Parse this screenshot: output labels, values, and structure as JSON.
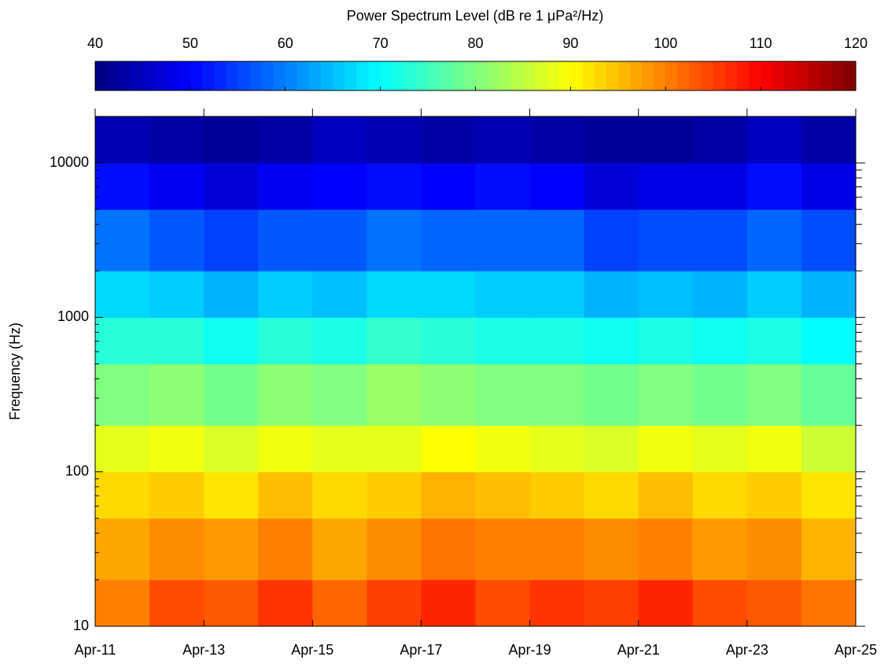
{
  "chart_data": {
    "type": "spectrogram",
    "colorbar_label": "Power Spectrum Level (dB re 1 μPa²/Hz)",
    "ylabel": "Frequency (Hz)",
    "colormap": "jet",
    "clim": [
      40,
      120
    ],
    "cticks": [
      40,
      50,
      60,
      70,
      80,
      90,
      100,
      110,
      120
    ],
    "x": [
      "Apr-11",
      null,
      "Apr-13",
      null,
      "Apr-15",
      null,
      "Apr-17",
      null,
      "Apr-19",
      null,
      "Apr-21",
      null,
      "Apr-23",
      null,
      "Apr-25"
    ],
    "y": [
      10,
      20,
      50,
      100,
      200,
      500,
      1000,
      2000,
      5000,
      10000,
      20000
    ],
    "ylim": [
      10,
      20000
    ],
    "yticks": [
      10,
      100,
      1000,
      10000
    ],
    "log_y": true,
    "values": [
      [
        100,
        104,
        103,
        106,
        102,
        105,
        107,
        104,
        106,
        105,
        107,
        104,
        103,
        101
      ],
      [
        97,
        99,
        98,
        100,
        97,
        99,
        101,
        100,
        100,
        99,
        100,
        98,
        99,
        96
      ],
      [
        93,
        94,
        92,
        95,
        93,
        94,
        96,
        95,
        94,
        93,
        95,
        93,
        94,
        92
      ],
      [
        88,
        89,
        87,
        89,
        88,
        88,
        90,
        89,
        88,
        87,
        89,
        88,
        89,
        86
      ],
      [
        80,
        81,
        79,
        81,
        80,
        82,
        81,
        80,
        80,
        79,
        80,
        79,
        80,
        78
      ],
      [
        73,
        73,
        71,
        73,
        72,
        74,
        73,
        72,
        72,
        71,
        72,
        71,
        72,
        70
      ],
      [
        67,
        66,
        64,
        66,
        65,
        67,
        67,
        66,
        66,
        64,
        65,
        64,
        66,
        64
      ],
      [
        59,
        57,
        55,
        57,
        57,
        59,
        58,
        58,
        58,
        55,
        56,
        56,
        58,
        56
      ],
      [
        51,
        49,
        47,
        49,
        50,
        51,
        50,
        51,
        50,
        47,
        48,
        48,
        51,
        48
      ],
      [
        44,
        43,
        42,
        43,
        45,
        44,
        43,
        44,
        43,
        42,
        42,
        43,
        45,
        43
      ]
    ]
  }
}
